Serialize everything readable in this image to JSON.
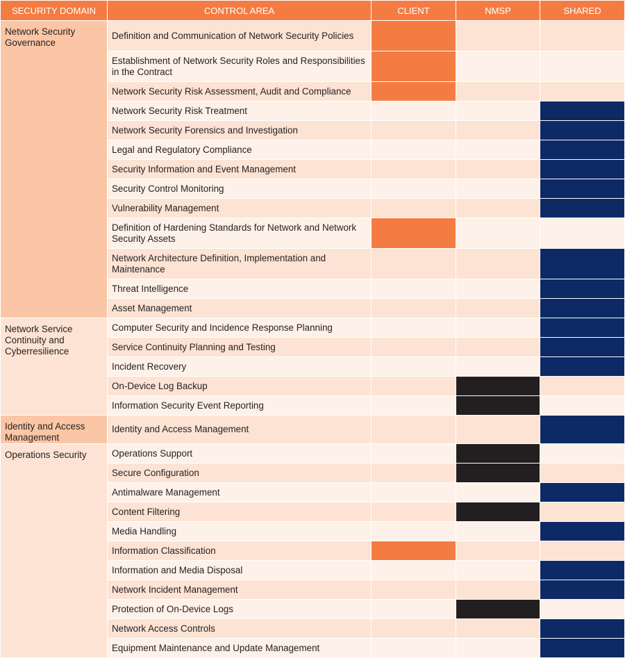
{
  "headers": {
    "domain": "SECURITY DOMAIN",
    "control": "CONTROL AREA",
    "client": "CLIENT",
    "nmsp": "NMSP",
    "shared": "SHARED"
  },
  "colors": {
    "client": "#f47c43",
    "nmsp": "#231f20",
    "shared": "#0d2a66"
  },
  "domains": [
    {
      "name": "Network Security Governance",
      "shade": "dark",
      "rows": [
        {
          "control": "Definition and Communication of Network Security Policies",
          "owner": "client"
        },
        {
          "control": "Establishment of Network Security Roles and Responsibilities in the Contract",
          "owner": "client"
        },
        {
          "control": "Network Security Risk Assessment, Audit and Compliance",
          "owner": "client"
        },
        {
          "control": "Network Security Risk Treatment",
          "owner": "shared"
        },
        {
          "control": "Network Security Forensics and Investigation",
          "owner": "shared"
        },
        {
          "control": "Legal and Regulatory Compliance",
          "owner": "shared"
        },
        {
          "control": "Security Information and Event Management",
          "owner": "shared"
        },
        {
          "control": "Security Control Monitoring",
          "owner": "shared"
        },
        {
          "control": "Vulnerability Management",
          "owner": "shared"
        },
        {
          "control": "Definition of Hardening Standards for Network and Network Security Assets",
          "owner": "client"
        },
        {
          "control": "Network Architecture Definition, Implementation and Maintenance",
          "owner": "shared"
        },
        {
          "control": "Threat Intelligence",
          "owner": "shared"
        },
        {
          "control": "Asset Management",
          "owner": "shared"
        }
      ]
    },
    {
      "name": "Network Service Continuity and Cyberresilience",
      "shade": "light",
      "rows": [
        {
          "control": "Computer Security and Incidence Response Planning",
          "owner": "shared"
        },
        {
          "control": "Service Continuity Planning and Testing",
          "owner": "shared"
        },
        {
          "control": "Incident Recovery",
          "owner": "shared"
        },
        {
          "control": "On-Device Log Backup",
          "owner": "nmsp"
        },
        {
          "control": "Information Security Event Reporting",
          "owner": "nmsp"
        }
      ]
    },
    {
      "name": "Identity and Access Management",
      "shade": "dark",
      "rows": [
        {
          "control": "Identity and Access Management",
          "owner": "shared"
        }
      ]
    },
    {
      "name": "Operations Security",
      "shade": "light",
      "rows": [
        {
          "control": "Operations Support",
          "owner": "nmsp"
        },
        {
          "control": "Secure Configuration",
          "owner": "nmsp"
        },
        {
          "control": "Antimalware Management",
          "owner": "shared"
        },
        {
          "control": "Content Filtering",
          "owner": "nmsp"
        },
        {
          "control": "Media Handling",
          "owner": "shared"
        },
        {
          "control": "Information Classification",
          "owner": "client"
        },
        {
          "control": "Information and Media Disposal",
          "owner": "shared"
        },
        {
          "control": "Network Incident Management",
          "owner": "shared"
        },
        {
          "control": "Protection of On-Device Logs",
          "owner": "nmsp"
        },
        {
          "control": "Network Access Controls",
          "owner": "shared"
        },
        {
          "control": "Equipment Maintenance and Update Management",
          "owner": "shared"
        }
      ]
    }
  ]
}
